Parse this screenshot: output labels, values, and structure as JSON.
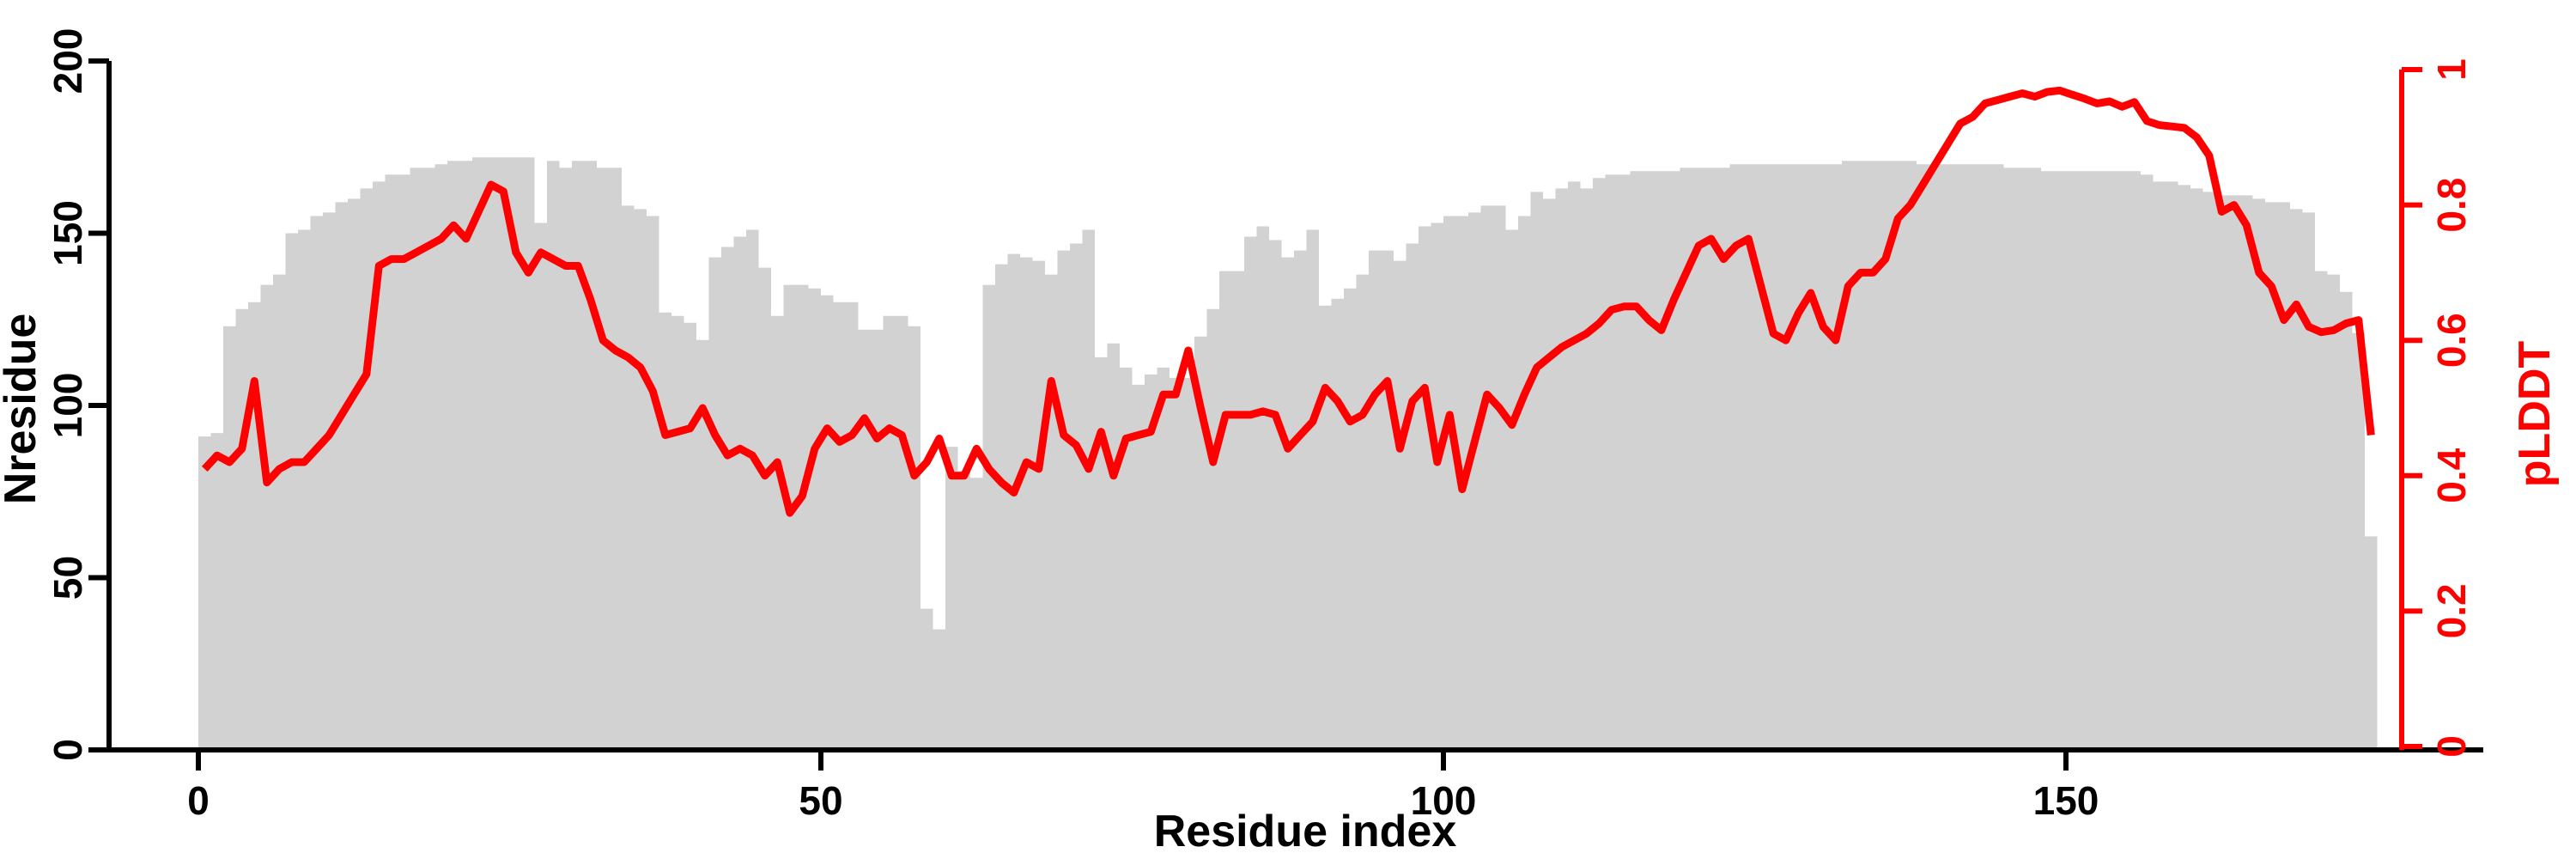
{
  "axes": {
    "left": {
      "label": "Nresidue",
      "ticks": [
        0,
        50,
        100,
        150,
        200
      ],
      "color": "#000000"
    },
    "bottom": {
      "label": "Residue index",
      "ticks": [
        0,
        50,
        100,
        150
      ],
      "color": "#000000"
    },
    "right": {
      "label": "pLDDT",
      "ticks": [
        "0",
        "0.2",
        "0.4",
        "0.6",
        "0.8",
        "1"
      ],
      "color": "#ff0000"
    }
  },
  "chart_data": {
    "type": "bar",
    "subtype": "bar+line dual axis",
    "x_start": 0,
    "x_step": 1,
    "n_points": 175,
    "xlabel": "Residue index",
    "ylabel_left": "Nresidue",
    "ylabel_right": "pLDDT",
    "ylim_left": [
      0,
      200
    ],
    "ylim_right": [
      0,
      1
    ],
    "xticks": [
      0,
      50,
      100,
      150
    ],
    "grid": false,
    "legend": "none",
    "series": [
      {
        "name": "Nresidue",
        "type": "bar",
        "axis": "left",
        "color": "#d2d2d2",
        "values": [
          91,
          92,
          123,
          128,
          130,
          135,
          138,
          150,
          151,
          155,
          156,
          159,
          160,
          163,
          165,
          167,
          167,
          169,
          169,
          170,
          171,
          171,
          172,
          172,
          172,
          172,
          172,
          153,
          171,
          169,
          171,
          171,
          169,
          169,
          158,
          157,
          155,
          127,
          126,
          124,
          119,
          143,
          146,
          149,
          151,
          140,
          126,
          135,
          135,
          134,
          132,
          130,
          130,
          122,
          122,
          126,
          126,
          123,
          41,
          35,
          88,
          81,
          79,
          135,
          141,
          144,
          143,
          142,
          138,
          145,
          147,
          151,
          114,
          118,
          111,
          106,
          109,
          111,
          108,
          108,
          120,
          128,
          139,
          139,
          149,
          152,
          148,
          143,
          145,
          151,
          129,
          131,
          134,
          138,
          145,
          145,
          142,
          147,
          152,
          153,
          155,
          155,
          156,
          158,
          158,
          151,
          155,
          162,
          160,
          163,
          165,
          163,
          166,
          167,
          167,
          168,
          168,
          168,
          168,
          169,
          169,
          169,
          169,
          170,
          170,
          170,
          170,
          170,
          170,
          170,
          170,
          170,
          171,
          171,
          171,
          171,
          171,
          171,
          170,
          170,
          170,
          170,
          170,
          170,
          170,
          169,
          169,
          169,
          168,
          168,
          168,
          168,
          168,
          168,
          168,
          168,
          167,
          165,
          165,
          164,
          163,
          162,
          161,
          161,
          161,
          160,
          159,
          159,
          157,
          156,
          139,
          138,
          133,
          121,
          62
        ]
      },
      {
        "name": "pLDDT",
        "type": "line",
        "axis": "right",
        "color": "#ff0000",
        "values": [
          0.41,
          0.43,
          0.42,
          0.44,
          0.54,
          0.39,
          0.41,
          0.42,
          0.42,
          0.44,
          0.46,
          0.49,
          0.52,
          0.55,
          0.71,
          0.72,
          0.72,
          0.73,
          0.74,
          0.75,
          0.77,
          0.75,
          0.79,
          0.83,
          0.82,
          0.73,
          0.7,
          0.73,
          0.72,
          0.71,
          0.71,
          0.66,
          0.6,
          0.585,
          0.575,
          0.56,
          0.525,
          0.46,
          0.465,
          0.47,
          0.5,
          0.46,
          0.43,
          0.44,
          0.43,
          0.4,
          0.42,
          0.345,
          0.37,
          0.44,
          0.47,
          0.45,
          0.46,
          0.485,
          0.455,
          0.47,
          0.46,
          0.4,
          0.42,
          0.455,
          0.4,
          0.4,
          0.44,
          0.41,
          0.39,
          0.375,
          0.42,
          0.41,
          0.54,
          0.46,
          0.445,
          0.41,
          0.465,
          0.4,
          0.455,
          0.46,
          0.465,
          0.52,
          0.52,
          0.585,
          0.5,
          0.42,
          0.49,
          0.49,
          0.49,
          0.495,
          0.49,
          0.44,
          0.46,
          0.48,
          0.53,
          0.51,
          0.48,
          0.49,
          0.52,
          0.54,
          0.44,
          0.51,
          0.53,
          0.42,
          0.49,
          0.38,
          0.45,
          0.52,
          0.5,
          0.475,
          0.52,
          0.56,
          0.575,
          0.59,
          0.6,
          0.61,
          0.625,
          0.645,
          0.65,
          0.65,
          0.63,
          0.615,
          0.66,
          0.7,
          0.74,
          0.75,
          0.72,
          0.74,
          0.75,
          0.68,
          0.61,
          0.6,
          0.64,
          0.67,
          0.62,
          0.6,
          0.68,
          0.7,
          0.7,
          0.72,
          0.78,
          0.8,
          0.83,
          0.86,
          0.89,
          0.92,
          0.93,
          0.95,
          0.955,
          0.96,
          0.965,
          0.96,
          0.967,
          0.969,
          0.963,
          0.957,
          0.95,
          0.953,
          0.945,
          0.952,
          0.924,
          0.918,
          0.916,
          0.914,
          0.9,
          0.873,
          0.79,
          0.8,
          0.77,
          0.7,
          0.68,
          0.63,
          0.653,
          0.62,
          0.612,
          0.615,
          0.625,
          0.63,
          0.46
        ]
      }
    ]
  }
}
